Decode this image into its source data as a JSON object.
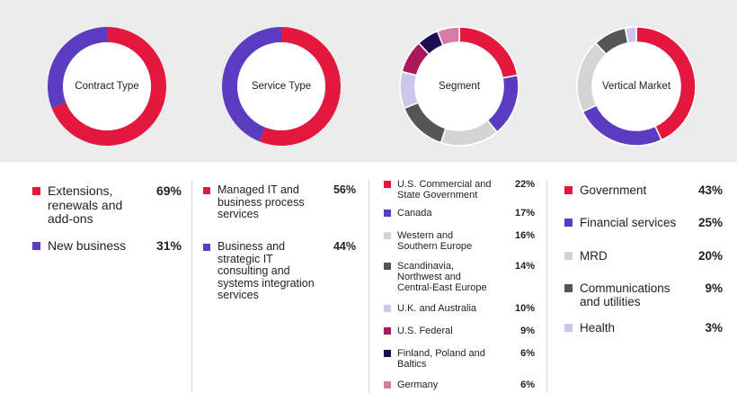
{
  "colors": {
    "red": "#e4173e",
    "purple": "#5b3bbf",
    "light_gray": "#d4d4d4",
    "dark_gray": "#555555",
    "lavender": "#cdc5ea",
    "magenta": "#a8185a",
    "navy": "#1e0d52",
    "pink": "#d57ca4"
  },
  "chart_data": [
    {
      "type": "pie",
      "title": "Contract Type",
      "categories": [
        "Extensions, renewals and add-ons",
        "New business"
      ],
      "values": [
        69,
        31
      ],
      "value_labels": [
        "69%",
        "31%"
      ],
      "colors": [
        "#e4173e",
        "#5b3bbf"
      ]
    },
    {
      "type": "pie",
      "title": "Service Type",
      "categories": [
        "Managed IT and business process services",
        "Business and strategic IT consulting and systems integration services"
      ],
      "values": [
        56,
        44
      ],
      "value_labels": [
        "56%",
        "44%"
      ],
      "colors": [
        "#e4173e",
        "#5b3bbf"
      ]
    },
    {
      "type": "pie",
      "title": "Segment",
      "categories": [
        "U.S. Commercial and State Government",
        "Canada",
        "Western and Southern Europe",
        "Scandinavia, Northwest and Central-East Europe",
        "U.K. and Australia",
        "U.S. Federal",
        "Finland, Poland and Baltics",
        "Germany"
      ],
      "values": [
        22,
        17,
        16,
        14,
        10,
        9,
        6,
        6
      ],
      "value_labels": [
        "22%",
        "17%",
        "16%",
        "14%",
        "10%",
        "9%",
        "6%",
        "6%"
      ],
      "colors": [
        "#e4173e",
        "#5b3bbf",
        "#d4d4d4",
        "#555555",
        "#cdc5ea",
        "#a8185a",
        "#1e0d52",
        "#d57ca4"
      ]
    },
    {
      "type": "pie",
      "title": "Vertical Market",
      "categories": [
        "Government",
        "Financial services",
        "MRD",
        "Communications and utilities",
        "Health"
      ],
      "values": [
        43,
        25,
        20,
        9,
        3
      ],
      "value_labels": [
        "43%",
        "25%",
        "20%",
        "9%",
        "3%"
      ],
      "colors": [
        "#e4173e",
        "#5b3bbf",
        "#d4d4d4",
        "#555555",
        "#cdc5ea"
      ]
    }
  ]
}
